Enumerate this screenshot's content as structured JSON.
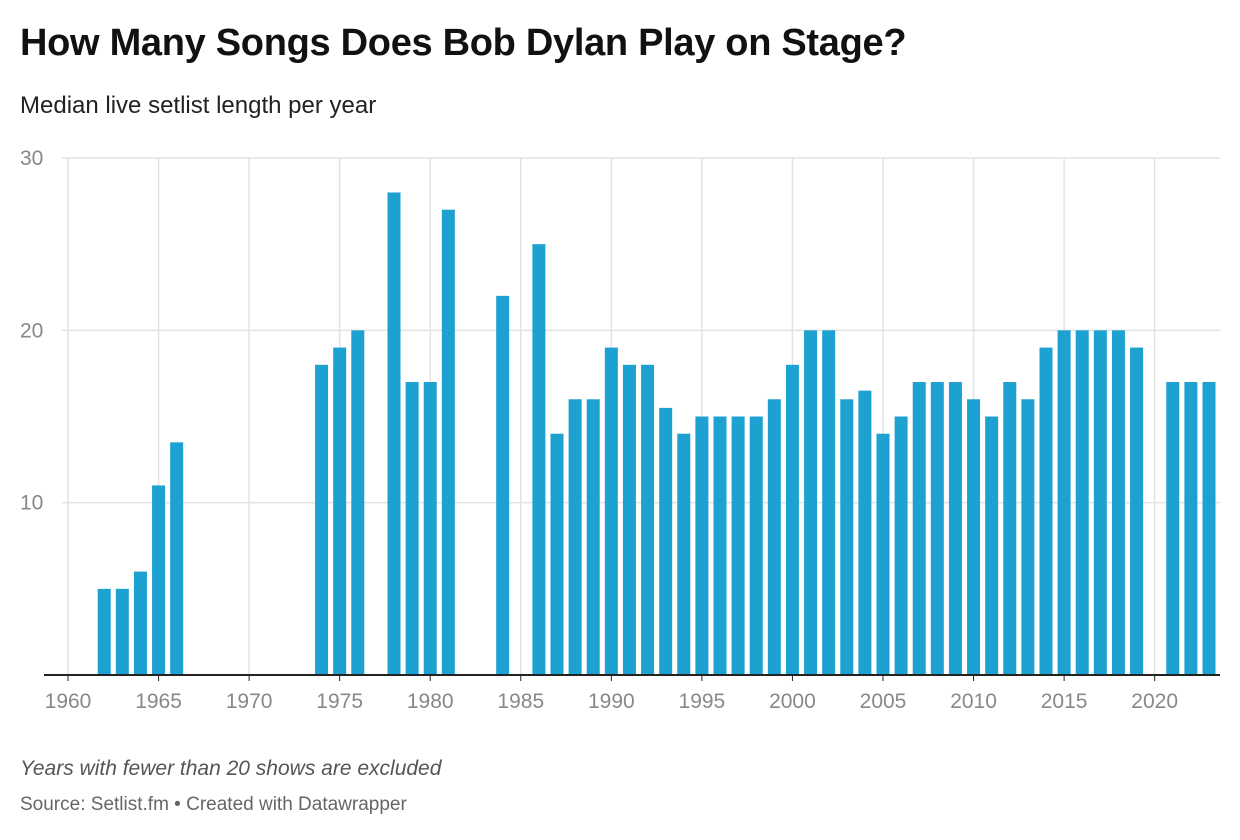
{
  "header": {
    "title": "How Many Songs Does Bob Dylan Play on Stage?",
    "subtitle": "Median live setlist length per year"
  },
  "footer": {
    "note": "Years with fewer than 20 shows are excluded",
    "source_label": "Source: ",
    "source": "Setlist.fm",
    "separator": " • ",
    "created_with": "Created with Datawrapper"
  },
  "colors": {
    "bar": "#1da1d0",
    "grid": "#e2e2e2",
    "axis": "#222222",
    "tick_text": "#888888"
  },
  "chart_data": {
    "type": "bar",
    "title": "How Many Songs Does Bob Dylan Play on Stage?",
    "subtitle": "Median live setlist length per year",
    "xlabel": "",
    "ylabel": "",
    "xlim": [
      1960,
      2023
    ],
    "ylim": [
      0,
      30
    ],
    "x_ticks": [
      1960,
      1965,
      1970,
      1975,
      1980,
      1985,
      1990,
      1995,
      2000,
      2005,
      2010,
      2015,
      2020
    ],
    "y_ticks": [
      10,
      20,
      30
    ],
    "grid": true,
    "legend": "none",
    "x": [
      1962,
      1963,
      1964,
      1965,
      1966,
      1974,
      1975,
      1976,
      1978,
      1979,
      1980,
      1981,
      1984,
      1986,
      1987,
      1988,
      1989,
      1990,
      1991,
      1992,
      1993,
      1994,
      1995,
      1996,
      1997,
      1998,
      1999,
      2000,
      2001,
      2002,
      2003,
      2004,
      2005,
      2006,
      2007,
      2008,
      2009,
      2010,
      2011,
      2012,
      2013,
      2014,
      2015,
      2016,
      2017,
      2018,
      2019,
      2021,
      2022,
      2023
    ],
    "values": [
      5,
      5,
      6,
      11,
      13.5,
      18,
      19,
      20,
      28,
      17,
      17,
      27,
      22,
      25,
      14,
      16,
      16,
      19,
      18,
      18,
      15.5,
      14,
      15,
      15,
      15,
      15,
      16,
      18,
      20,
      20,
      16,
      16.5,
      14,
      15,
      17,
      17,
      17,
      16,
      15,
      17,
      16,
      19,
      20,
      20,
      20,
      20,
      19,
      17,
      17,
      17
    ]
  }
}
